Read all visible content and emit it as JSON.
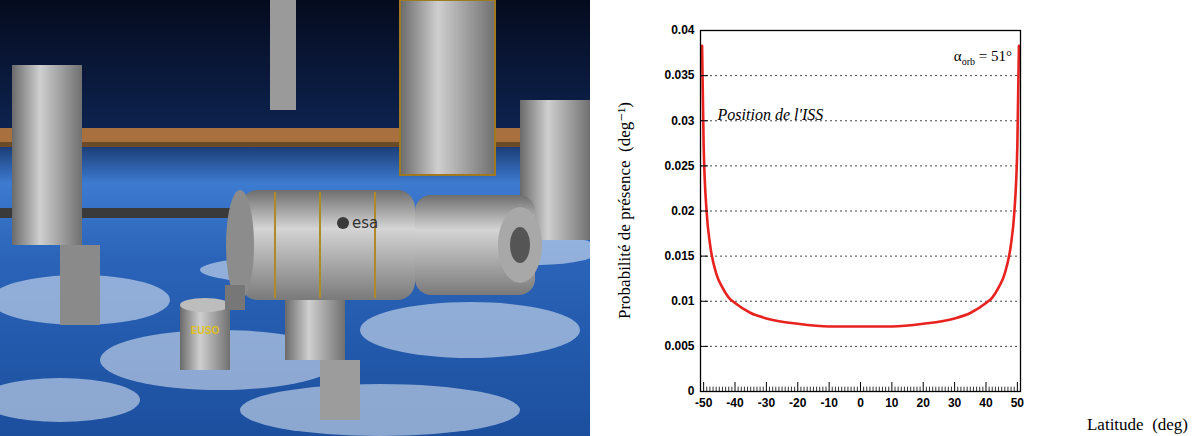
{
  "image": {
    "labels": [
      "esa",
      "EUSO"
    ]
  },
  "chart_data": {
    "type": "line",
    "xlabel": "Latitude  (deg)",
    "ylabel": "Probabilité de présence  (deg⁻¹)",
    "annotations": [
      {
        "text": "Position de l'ISS"
      },
      {
        "text": "α",
        "subscript": "orb",
        "after": " = 51°"
      }
    ],
    "x": [
      -50.5,
      -50,
      -49,
      -48,
      -46,
      -44,
      -42,
      -40,
      -35,
      -30,
      -20,
      -10,
      0,
      10,
      20,
      30,
      35,
      40,
      42,
      44,
      46,
      48,
      49,
      50,
      50.5
    ],
    "values": [
      0.0383,
      0.0273,
      0.0197,
      0.0164,
      0.0131,
      0.0115,
      0.0104,
      0.0098,
      0.0087,
      0.0081,
      0.0075,
      0.0072,
      0.0072,
      0.0072,
      0.0075,
      0.0081,
      0.0087,
      0.0098,
      0.0104,
      0.0115,
      0.0131,
      0.0164,
      0.0197,
      0.0273,
      0.0383
    ],
    "color": "#e8231f",
    "xlim": [
      -51,
      51
    ],
    "xticks": [
      -50,
      -40,
      -30,
      -20,
      -10,
      0,
      10,
      20,
      30,
      40,
      50
    ],
    "ylim": [
      0,
      0.04
    ],
    "yticks": [
      0,
      0.005,
      0.01,
      0.015,
      0.02,
      0.025,
      0.03,
      0.035,
      0.04
    ],
    "grid": true
  }
}
